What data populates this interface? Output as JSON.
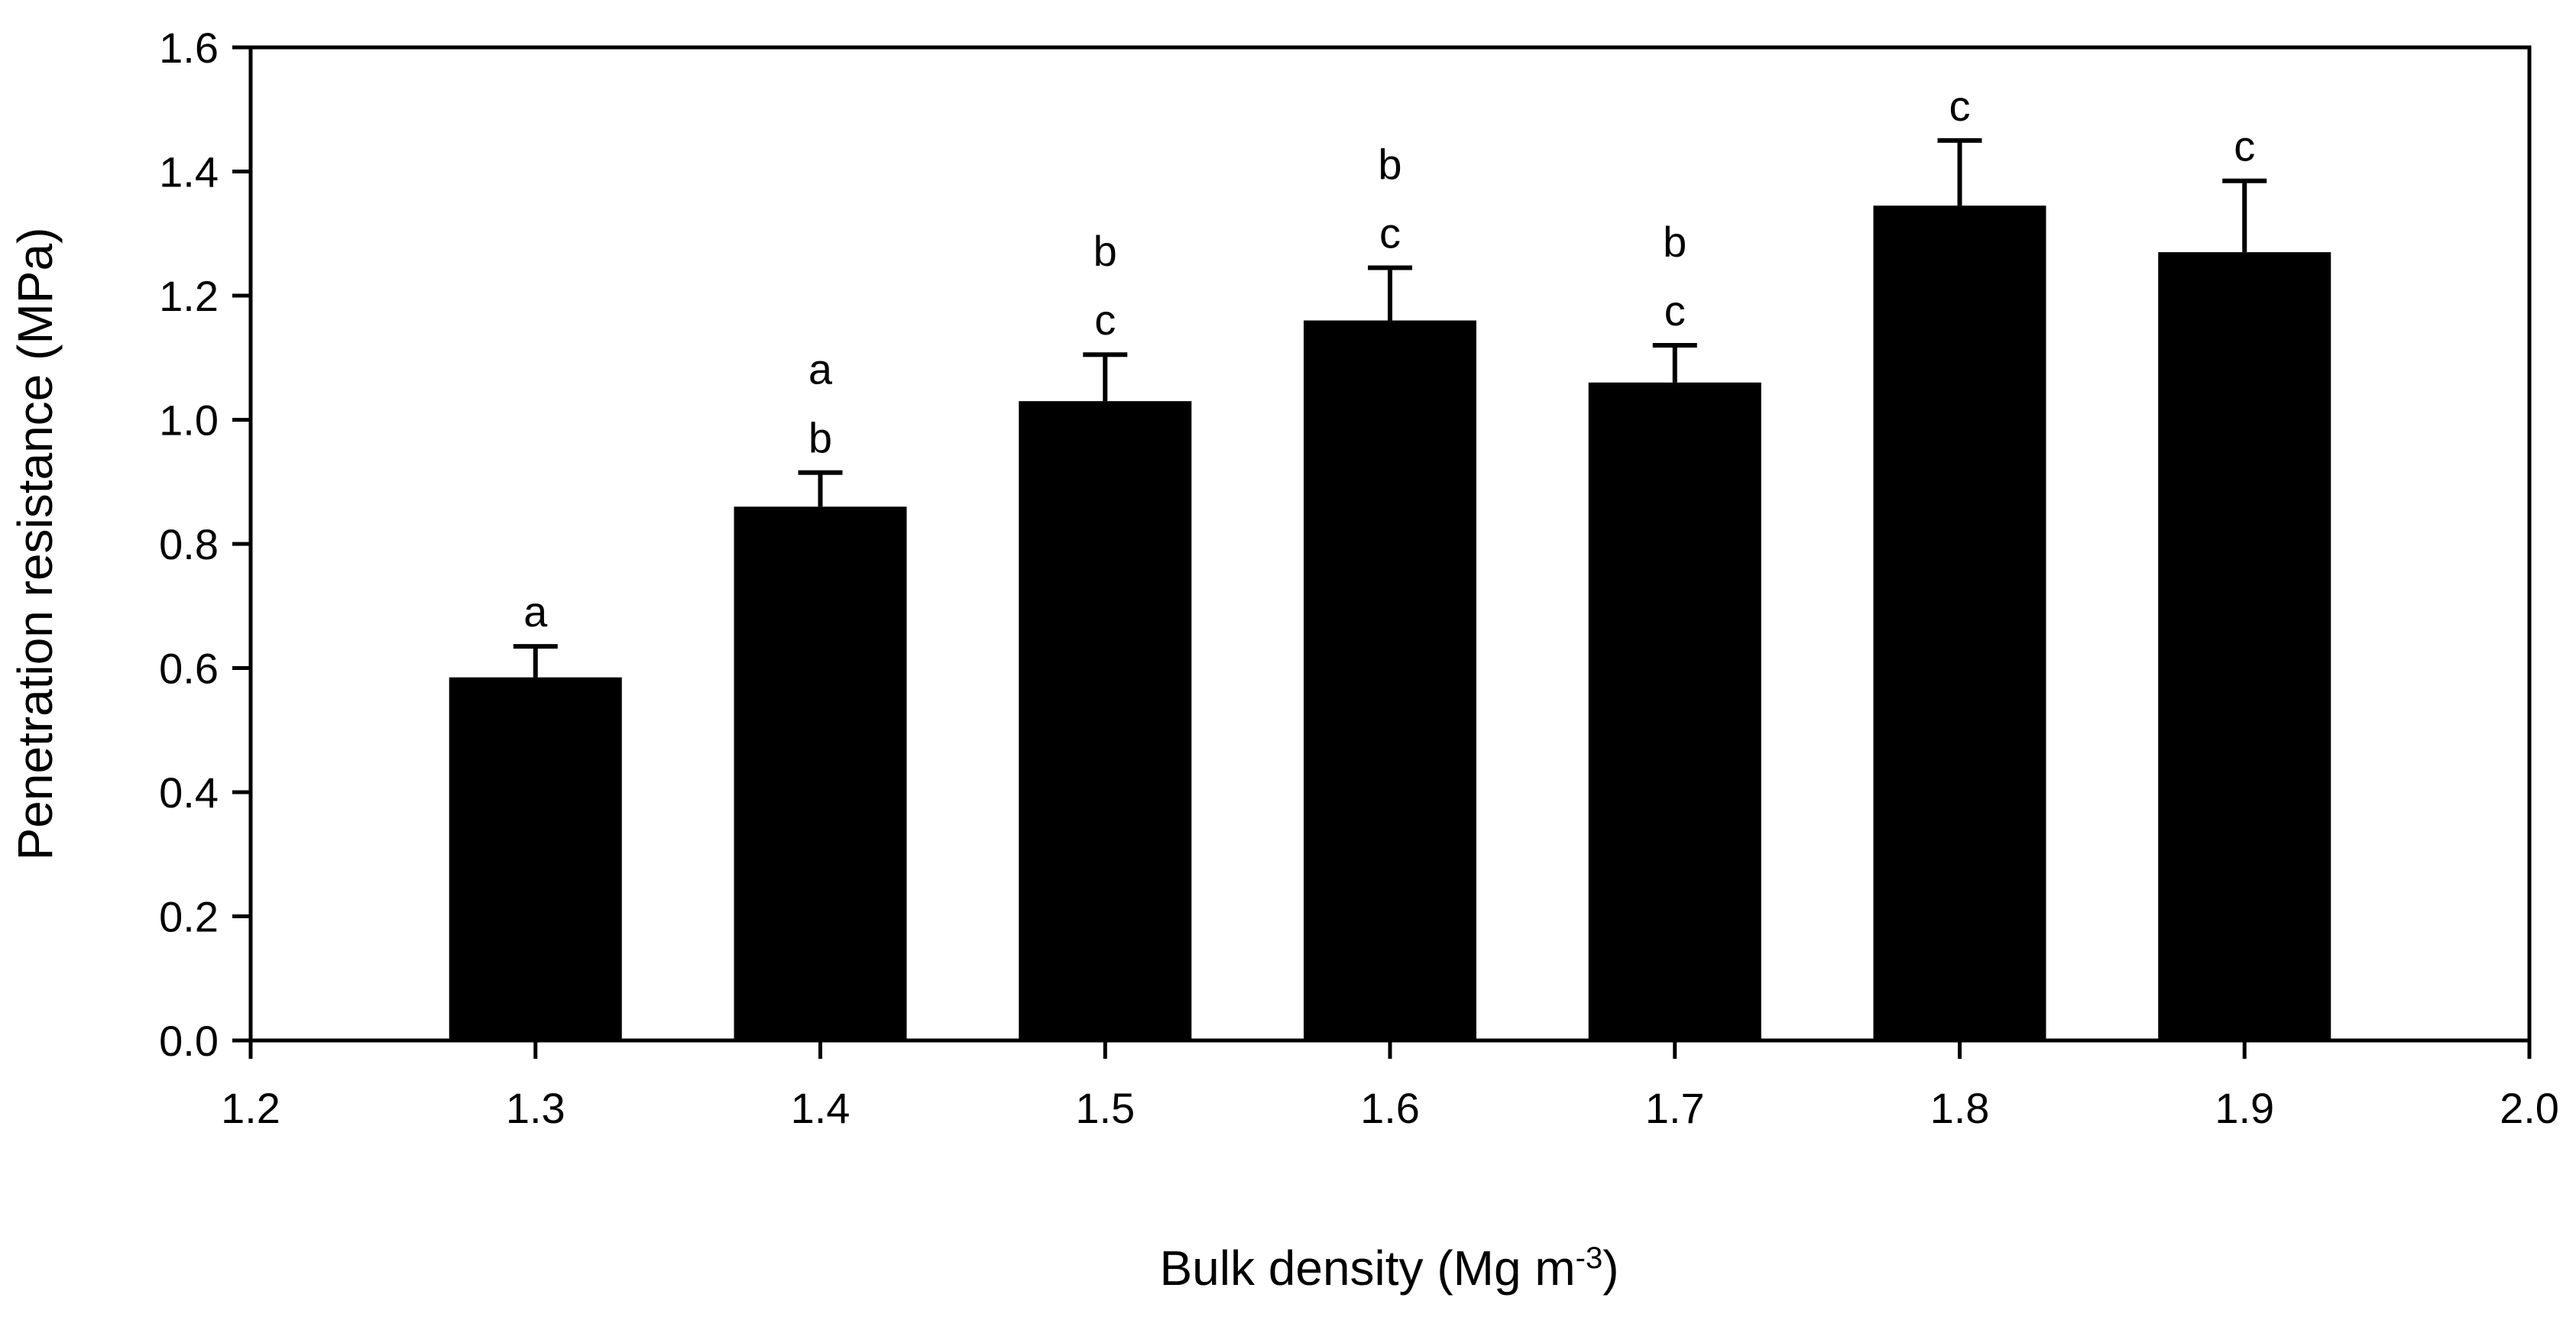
{
  "chart_data": {
    "type": "bar",
    "xlabel": "Bulk density (Mg m",
    "xlabel_superscript": "-3",
    "xlabel_suffix": ")",
    "ylabel": "Penetration resistance (MPa)",
    "xlim": [
      1.2,
      2.0
    ],
    "ylim": [
      0.0,
      1.6
    ],
    "x_ticks": [
      "1.2",
      "1.3",
      "1.4",
      "1.5",
      "1.6",
      "1.7",
      "1.8",
      "1.9",
      "2.0"
    ],
    "y_ticks": [
      "0.0",
      "0.2",
      "0.4",
      "0.6",
      "0.8",
      "1.0",
      "1.2",
      "1.4",
      "1.6"
    ],
    "grid": false,
    "bar_color": "#000000",
    "bars": [
      {
        "x": 1.3,
        "value": 0.585,
        "error": 0.05,
        "letters": [
          "a"
        ]
      },
      {
        "x": 1.4,
        "value": 0.86,
        "error": 0.055,
        "letters": [
          "a",
          "b"
        ]
      },
      {
        "x": 1.5,
        "value": 1.03,
        "error": 0.075,
        "letters": [
          "b",
          "c"
        ]
      },
      {
        "x": 1.6,
        "value": 1.16,
        "error": 0.085,
        "letters": [
          "b",
          "c"
        ]
      },
      {
        "x": 1.7,
        "value": 1.06,
        "error": 0.06,
        "letters": [
          "b",
          "c"
        ]
      },
      {
        "x": 1.8,
        "value": 1.345,
        "error": 0.105,
        "letters": [
          "c"
        ]
      },
      {
        "x": 1.9,
        "value": 1.27,
        "error": 0.115,
        "letters": [
          "c"
        ]
      }
    ]
  }
}
